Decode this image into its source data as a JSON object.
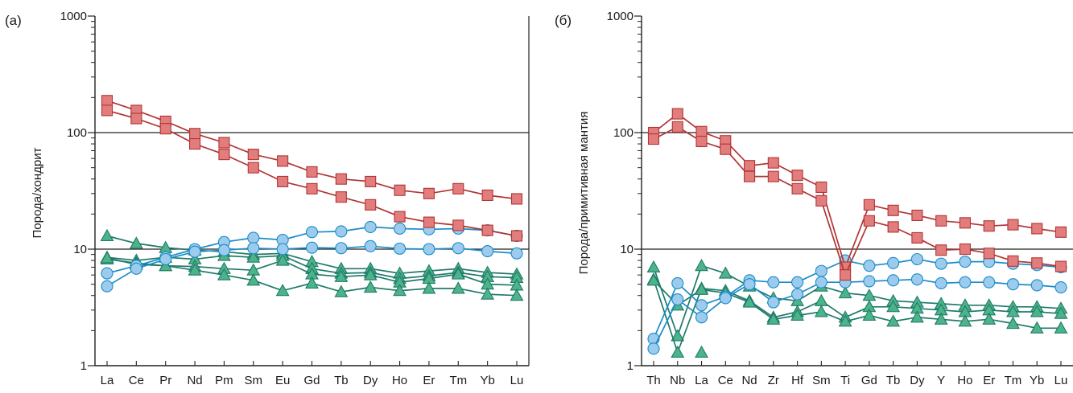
{
  "colors": {
    "red_fill": "#e27d7d",
    "red_line": "#b23434",
    "blue_fill": "#9ccbee",
    "blue_line": "#1a8cc8",
    "green_fill": "#4db388",
    "green_line": "#1e7a6a",
    "grid": "#222222"
  },
  "chart_data": [
    {
      "type": "line",
      "panel_label": "(а)",
      "ylabel": "Порода/хондрит",
      "yscale": "log",
      "ylim": [
        1,
        1000
      ],
      "yticks": [
        "1",
        "10",
        "100",
        "1000"
      ],
      "categories": [
        "La",
        "Ce",
        "Pr",
        "Nd",
        "Pm",
        "Sm",
        "Eu",
        "Gd",
        "Tb",
        "Dy",
        "Ho",
        "Er",
        "Tm",
        "Yb",
        "Lu"
      ],
      "series": [
        {
          "group": "red",
          "values": [
            188,
            155,
            125,
            98,
            82,
            65,
            57,
            46,
            40,
            38,
            32,
            30,
            33,
            29,
            27
          ]
        },
        {
          "group": "red",
          "values": [
            155,
            132,
            108,
            80,
            65,
            50,
            38,
            33,
            28,
            24,
            19,
            17,
            16,
            14.5,
            13
          ]
        },
        {
          "group": "blue",
          "values": [
            6.2,
            7.2,
            8.5,
            10,
            11.5,
            12.5,
            12,
            14,
            14.2,
            15.5,
            15,
            14.8,
            15,
            14.5,
            13
          ]
        },
        {
          "group": "blue",
          "values": [
            4.8,
            6.8,
            8.2,
            9.5,
            9.8,
            10.2,
            10,
            10.3,
            10.2,
            10.6,
            10.1,
            10,
            10.2,
            9.6,
            9.2
          ]
        },
        {
          "group": "green",
          "values": [
            13,
            11.2,
            10.3,
            9.8,
            9.5,
            9,
            9.2,
            7.8,
            6.8,
            6.8,
            6.2,
            6.5,
            6.8,
            6.3,
            6.1
          ]
        },
        {
          "group": "green",
          "values": [
            8.5,
            8,
            8.5,
            8.2,
            8.8,
            8.5,
            8.8,
            6.8,
            6.2,
            6.3,
            5.6,
            5.9,
            6.3,
            5.8,
            5.7
          ]
        },
        {
          "group": "green",
          "values": [
            8.2,
            7.6,
            7.2,
            7.1,
            6.8,
            6.6,
            8,
            6.1,
            5.8,
            6,
            5.2,
            5.6,
            6.1,
            5,
            4.9
          ]
        },
        {
          "group": "green",
          "values": [
            8.4,
            7.4,
            7.2,
            6.6,
            6,
            5.4,
            4.4,
            5.1,
            4.3,
            4.7,
            4.4,
            4.6,
            4.6,
            4.1,
            4
          ]
        }
      ]
    },
    {
      "type": "line",
      "panel_label": "(б)",
      "ylabel": "Порода/примитивная мантия",
      "yscale": "log",
      "ylim": [
        1,
        1000
      ],
      "yticks": [
        "1",
        "10",
        "100",
        "1000"
      ],
      "categories": [
        "Th",
        "Nb",
        "La",
        "Ce",
        "Nd",
        "Zr",
        "Hf",
        "Sm",
        "Ti",
        "Gd",
        "Tb",
        "Dy",
        "Y",
        "Ho",
        "Er",
        "Tm",
        "Yb",
        "Lu"
      ],
      "series": [
        {
          "group": "red",
          "values": [
            100,
            145,
            102,
            85,
            52,
            55,
            43,
            34,
            7,
            24,
            21.5,
            19.5,
            17.5,
            16.8,
            15.8,
            16.2,
            15,
            14
          ]
        },
        {
          "group": "red",
          "values": [
            88,
            112,
            84,
            72,
            42,
            42,
            33,
            26,
            6,
            17.5,
            15.5,
            12.5,
            9.8,
            10,
            9.2,
            7.9,
            7.6,
            7.1
          ]
        },
        {
          "group": "blue",
          "values": [
            1.7,
            5.1,
            3.3,
            3.9,
            5.4,
            5.2,
            5.2,
            6.5,
            8,
            7.2,
            7.6,
            8.2,
            7.5,
            7.8,
            7.8,
            7.5,
            7.3,
            7
          ]
        },
        {
          "group": "blue",
          "values": [
            1.4,
            3.7,
            2.6,
            3.8,
            5,
            3.5,
            4.1,
            5.2,
            5.2,
            5.3,
            5.4,
            5.5,
            5.1,
            5.2,
            5.2,
            5,
            4.9,
            4.7
          ]
        },
        {
          "group": "green",
          "values": [
            7,
            1.8,
            7.2,
            6.2,
            4.8,
            3.8,
            3.6,
            4.8,
            4.2,
            4,
            3.6,
            3.5,
            3.4,
            3.3,
            3.3,
            3.2,
            3.2,
            3.1
          ]
        },
        {
          "group": "green",
          "values": [
            5.5,
            1.3,
            4.6,
            4.4,
            3.6,
            2.6,
            2.9,
            3.6,
            2.6,
            3.2,
            3.2,
            3.1,
            3,
            2.9,
            3,
            2.9,
            2.9,
            2.8
          ]
        },
        {
          "group": "green",
          "values": [
            5.4,
            3.3,
            4.5,
            4.2,
            3.5,
            2.5,
            2.7,
            2.9,
            2.4,
            2.7,
            2.4,
            2.6,
            2.5,
            2.4,
            2.5,
            2.3,
            2.1,
            2.1
          ]
        },
        {
          "group": "green",
          "values": [
            null,
            null,
            1.3,
            null,
            null,
            null,
            null,
            null,
            null,
            null,
            null,
            null,
            null,
            null,
            null,
            null,
            null,
            null
          ]
        }
      ]
    }
  ]
}
